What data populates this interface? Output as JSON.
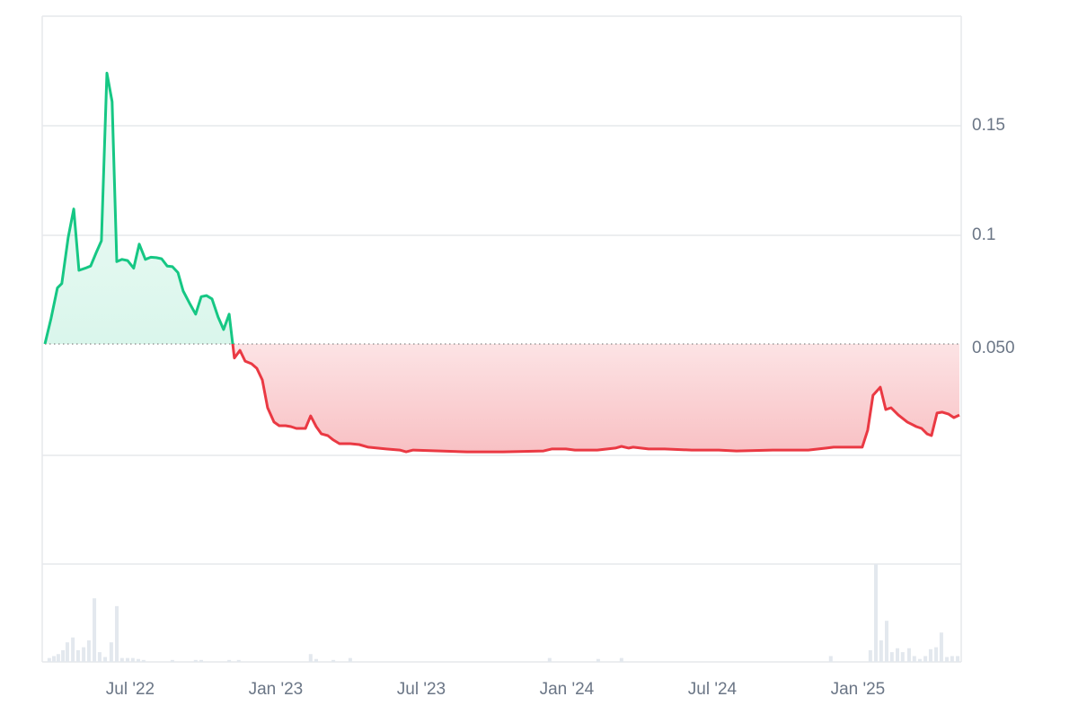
{
  "chart_data": {
    "type": "line",
    "x": [
      2022.207,
      2022.228,
      2022.25,
      2022.265,
      2022.287,
      2022.306,
      2022.324,
      2022.346,
      2022.364,
      2022.383,
      2022.401,
      2022.42,
      2022.438,
      2022.454,
      2022.472,
      2022.491,
      2022.512,
      2022.531,
      2022.552,
      2022.571,
      2022.59,
      2022.608,
      2022.627,
      2022.645,
      2022.664,
      2022.682,
      2022.704,
      2022.725,
      2022.744,
      2022.762,
      2022.781,
      2022.802,
      2022.821,
      2022.84,
      2022.858,
      2022.877,
      2022.895,
      2022.917,
      2022.935,
      2022.954,
      2022.972,
      2022.994,
      2023.012,
      2023.034,
      2023.052,
      2023.071,
      2023.102,
      2023.12,
      2023.139,
      2023.157,
      2023.179,
      2023.198,
      2023.219,
      2023.256,
      2023.287,
      2023.318,
      2023.38,
      2023.426,
      2023.448,
      2023.472,
      2023.565,
      2023.657,
      2023.781,
      2023.92,
      2023.948,
      2023.997,
      2024.028,
      2024.105,
      2024.167,
      2024.188,
      2024.213,
      2024.228,
      2024.281,
      2024.336,
      2024.429,
      2024.522,
      2024.583,
      2024.707,
      2024.83,
      2024.892,
      2024.917,
      2025.015,
      2025.034,
      2025.052,
      2025.077,
      2025.096,
      2025.114,
      2025.139,
      2025.17,
      2025.201,
      2025.219,
      2025.238,
      2025.253,
      2025.272,
      2025.29,
      2025.312,
      2025.33,
      2025.349
    ],
    "values": [
      0.0504,
      0.062,
      0.076,
      0.078,
      0.099,
      0.112,
      0.084,
      0.085,
      0.086,
      0.092,
      0.0975,
      0.174,
      0.161,
      0.088,
      0.089,
      0.0885,
      0.085,
      0.096,
      0.089,
      0.09,
      0.0898,
      0.0893,
      0.086,
      0.0857,
      0.083,
      0.0746,
      0.069,
      0.064,
      0.072,
      0.0725,
      0.071,
      0.0627,
      0.057,
      0.064,
      0.044,
      0.0475,
      0.0426,
      0.0414,
      0.0393,
      0.034,
      0.0213,
      0.0148,
      0.0131,
      0.0131,
      0.0127,
      0.0119,
      0.0119,
      0.0176,
      0.0127,
      0.0094,
      0.0086,
      0.0066,
      0.0049,
      0.0049,
      0.0045,
      0.0033,
      0.0025,
      0.002,
      0.0012,
      0.002,
      0.0016,
      0.0012,
      0.0012,
      0.0016,
      0.0025,
      0.0025,
      0.002,
      0.002,
      0.0029,
      0.0037,
      0.0029,
      0.0033,
      0.0025,
      0.0025,
      0.002,
      0.002,
      0.0016,
      0.002,
      0.002,
      0.0029,
      0.0033,
      0.0033,
      0.0111,
      0.027,
      0.0307,
      0.0205,
      0.0213,
      0.018,
      0.0148,
      0.0127,
      0.0119,
      0.0094,
      0.0086,
      0.0189,
      0.0193,
      0.0184,
      0.0168,
      0.018
    ],
    "up_color": "#16c784",
    "down_color": "#ea3943",
    "baseline": {
      "value": 0.0504,
      "label": "0.050"
    },
    "xlim": [
      2022.207,
      2025.349
    ],
    "xticks": [
      {
        "value": 2022.5,
        "label": "Jul '22"
      },
      {
        "value": 2023.0,
        "label": "Jan '23"
      },
      {
        "value": 2023.5,
        "label": "Jul '23"
      },
      {
        "value": 2024.0,
        "label": "Jan '24"
      },
      {
        "value": 2024.5,
        "label": "Jul '24"
      },
      {
        "value": 2025.0,
        "label": "Jan '25"
      }
    ],
    "ylim": [
      -0.05,
      0.2
    ],
    "yticks": [
      0.1,
      0.15
    ],
    "grid": true,
    "volume": {
      "color": "#e3e8ee",
      "vlim": [
        0,
        100
      ],
      "x": [
        2022.222,
        2022.238,
        2022.253,
        2022.269,
        2022.284,
        2022.303,
        2022.321,
        2022.34,
        2022.358,
        2022.377,
        2022.395,
        2022.414,
        2022.435,
        2022.454,
        2022.472,
        2022.491,
        2022.509,
        2022.528,
        2022.546,
        2022.645,
        2022.725,
        2022.744,
        2022.84,
        2022.873,
        2023.12,
        2023.139,
        2023.198,
        2023.256,
        2023.941,
        2024.108,
        2024.188,
        2024.907,
        2025.043,
        2025.062,
        2025.08,
        2025.099,
        2025.117,
        2025.136,
        2025.154,
        2025.176,
        2025.194,
        2025.213,
        2025.232,
        2025.25,
        2025.269,
        2025.287,
        2025.306,
        2025.324,
        2025.343
      ],
      "values": [
        4,
        6,
        8,
        12,
        20,
        25,
        12,
        15,
        22,
        65,
        10,
        5,
        20,
        57,
        4,
        4,
        4,
        3,
        2,
        2,
        2,
        2,
        2,
        2,
        8,
        3,
        2,
        4,
        4,
        3,
        4,
        6,
        12,
        100,
        22,
        42,
        10,
        14,
        10,
        14,
        6,
        3,
        6,
        13,
        15,
        30,
        5,
        6,
        6
      ]
    }
  }
}
